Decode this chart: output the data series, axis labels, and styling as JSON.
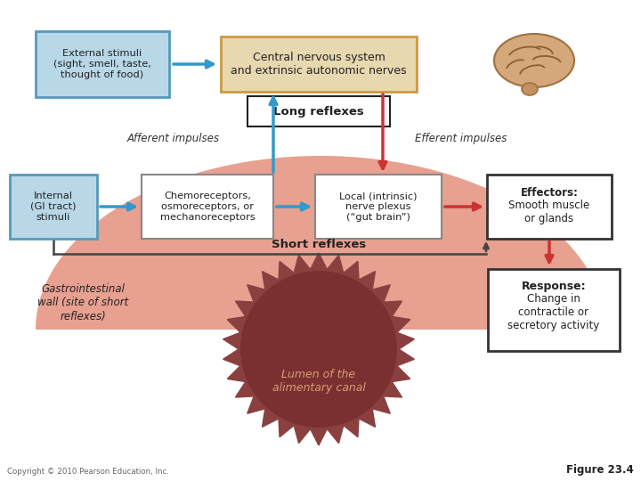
{
  "bg_color": "#ffffff",
  "gi_tract_color": "#e8a090",
  "lumen_color": "#8b4040",
  "lumen_inner_color": "#7a3030",
  "box_blue_fill": "#b8d8e8",
  "box_blue_border": "#5599bb",
  "box_tan_fill": "#e8d8b0",
  "box_tan_border": "#cc9944",
  "box_white_fill": "#ffffff",
  "box_white_border": "#888888",
  "box_bold_border": "#333333",
  "arrow_blue": "#3399cc",
  "arrow_red": "#cc3333",
  "arrow_black": "#222222",
  "arrow_dark": "#444444",
  "text_color": "#222222",
  "italic_color": "#333333",
  "copyright_text": "Copyright © 2010 Pearson Education, Inc.",
  "figure_text": "Figure 23.4",
  "external_stimuli": "External stimuli\n(sight, smell, taste,\nthought of food)",
  "cns_text": "Central nervous system\nand extrinsic autonomic nerves",
  "long_reflexes": "Long reflexes",
  "afferent": "Afferent impulses",
  "efferent": "Efferent impulses",
  "internal_stimuli": "Internal\n(GI tract)\nstimuli",
  "chemo_text": "Chemoreceptors,\nosmoreceptors, or\nmechanoreceptors",
  "local_nerve": "Local (intrinsic)\nnerve plexus\n(“gut brain”)",
  "effectors_bold": "Effectors:",
  "effectors_rest": "Smooth muscle\nor glands",
  "short_reflexes": "Short reflexes",
  "gi_wall": "Gastrointestinal\nwall (site of short\nreflexes)",
  "lumen_label": "Lumen of the\nalimentary canal",
  "response_bold": "Response:",
  "response_rest": "Change in\ncontractile or\nsecretory activity"
}
